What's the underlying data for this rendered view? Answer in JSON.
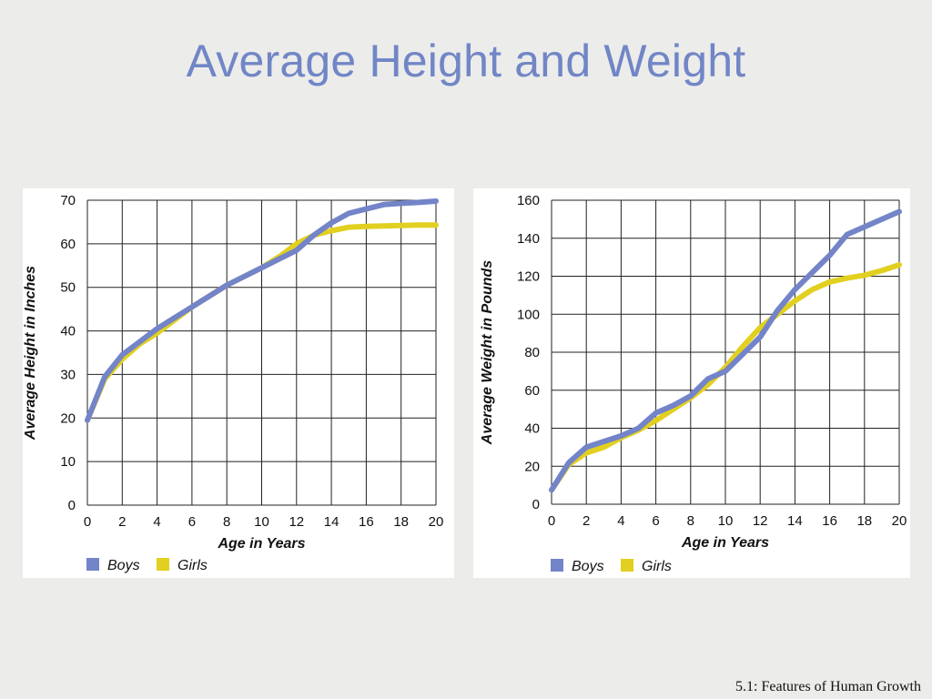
{
  "slide": {
    "title": "Average Height and Weight",
    "footer": "5.1: Features of Human Growth"
  },
  "colors": {
    "boys": "#7384c8",
    "girls": "#e2d020",
    "grid": "#222222",
    "panel": "#ffffff",
    "background": "#ececea"
  },
  "chart_data": [
    {
      "type": "line",
      "title": "",
      "xlabel": "Age in Years",
      "ylabel": "Average Height in Inches",
      "xlim": [
        0,
        20
      ],
      "ylim": [
        0,
        70
      ],
      "xticks": [
        "0",
        "2",
        "4",
        "6",
        "8",
        "10",
        "12",
        "14",
        "16",
        "18",
        "20"
      ],
      "yticks": [
        "0",
        "10",
        "20",
        "30",
        "40",
        "50",
        "60",
        "70"
      ],
      "grid": true,
      "legend": "bottom-left",
      "x": [
        0,
        1,
        2,
        3,
        4,
        5,
        6,
        7,
        8,
        9,
        10,
        11,
        12,
        13,
        14,
        15,
        16,
        17,
        18,
        19,
        20
      ],
      "series": [
        {
          "name": "Girls",
          "color": "#e2d020",
          "values": [
            19.5,
            29,
            33.5,
            37,
            39.5,
            42.5,
            45.5,
            48,
            50.5,
            52.5,
            54.5,
            57,
            60,
            62,
            63,
            63.8,
            64,
            64.1,
            64.2,
            64.3,
            64.3
          ]
        },
        {
          "name": "Boys",
          "color": "#7384c8",
          "values": [
            19.5,
            29.5,
            34.5,
            37.5,
            40.5,
            43,
            45.5,
            48,
            50.5,
            52.5,
            54.5,
            56.5,
            58.5,
            62,
            64.8,
            67,
            68,
            69,
            69.3,
            69.5,
            69.8
          ]
        }
      ]
    },
    {
      "type": "line",
      "title": "",
      "xlabel": "Age in Years",
      "ylabel": "Average Weight in Pounds",
      "xlim": [
        0,
        20
      ],
      "ylim": [
        0,
        160
      ],
      "xticks": [
        "0",
        "2",
        "4",
        "6",
        "8",
        "10",
        "12",
        "14",
        "16",
        "18",
        "20"
      ],
      "yticks": [
        "0",
        "20",
        "40",
        "60",
        "80",
        "100",
        "120",
        "140",
        "160"
      ],
      "grid": true,
      "legend": "bottom-left",
      "x": [
        0,
        1,
        2,
        3,
        4,
        5,
        6,
        7,
        8,
        9,
        10,
        11,
        12,
        13,
        14,
        15,
        16,
        17,
        18,
        19,
        20
      ],
      "series": [
        {
          "name": "Girls",
          "color": "#e2d020",
          "values": [
            7.5,
            21,
            27,
            30,
            35,
            39,
            44,
            50,
            56,
            63,
            72,
            83,
            93,
            100,
            107,
            113,
            117,
            119,
            120.5,
            123,
            126
          ]
        },
        {
          "name": "Boys",
          "color": "#7384c8",
          "values": [
            7.5,
            22,
            30,
            33,
            36,
            40,
            48,
            52,
            57,
            66,
            70,
            79,
            88,
            102,
            113,
            122,
            131,
            142,
            146,
            150,
            154
          ]
        }
      ]
    }
  ]
}
